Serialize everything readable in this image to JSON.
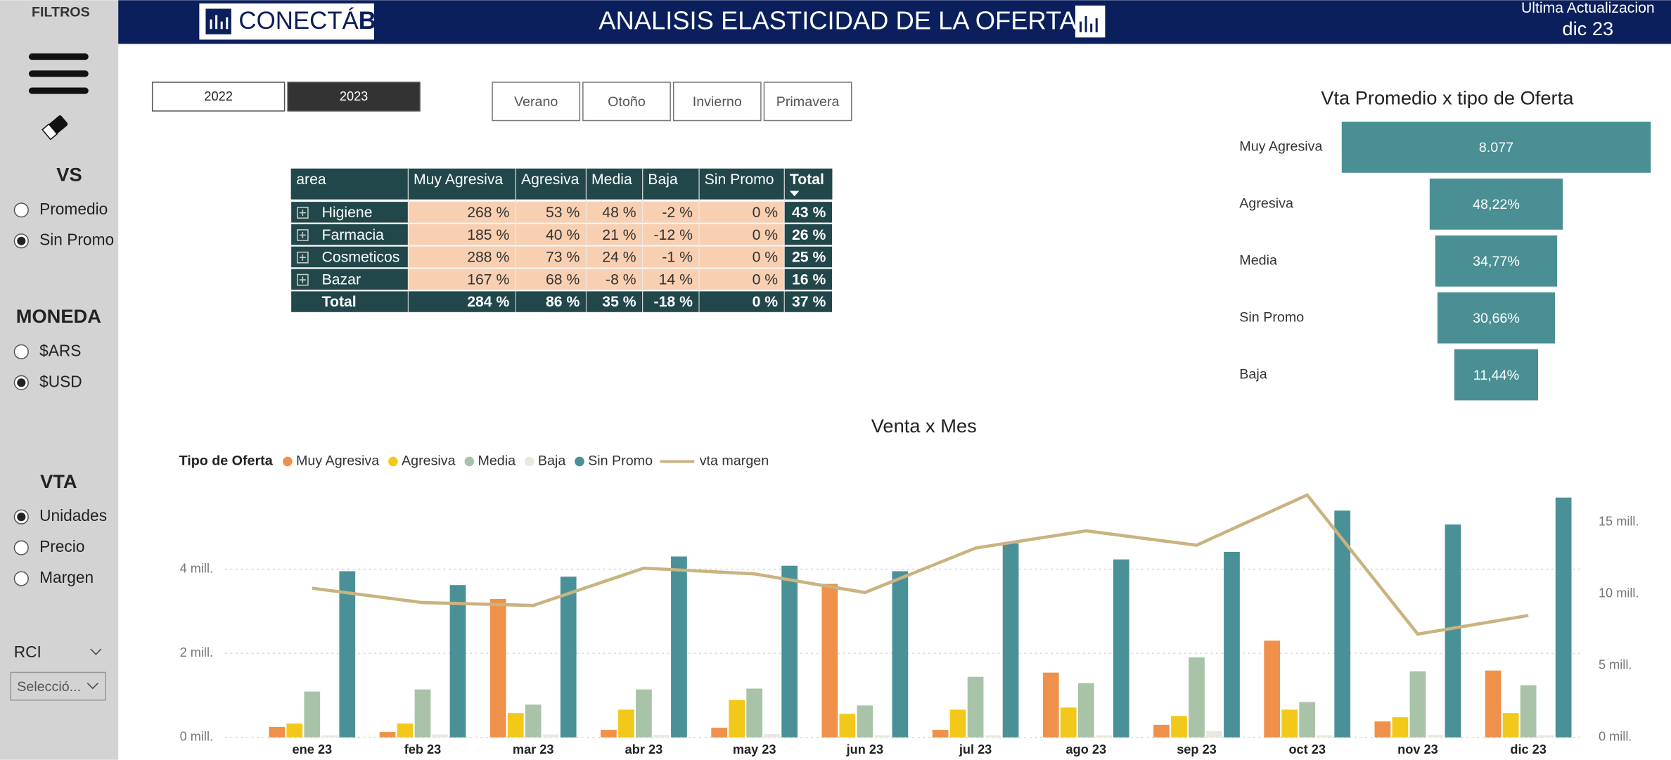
{
  "header": {
    "brand": "CONECTÁ",
    "brand_bold": "BI",
    "title": "ANALISIS ELASTICIDAD DE LA OFERTA",
    "update_label": "Ultima Actualizacion",
    "update_value": "dic 23"
  },
  "sidebar": {
    "title": "FILTROS",
    "groups": [
      {
        "title": "VS",
        "options": [
          "Promedio",
          "Sin Promo"
        ],
        "selected": 1
      },
      {
        "title": "MONEDA",
        "options": [
          "$ARS",
          "$USD"
        ],
        "selected": 1
      },
      {
        "title": "VTA",
        "options": [
          "Unidades",
          "Precio",
          "Margen"
        ],
        "selected": 0
      }
    ],
    "rci": {
      "label": "RCI",
      "placeholder": "Selecció..."
    }
  },
  "filters": {
    "years": [
      "2022",
      "2023"
    ],
    "selected_year": 1,
    "seasons": [
      "Verano",
      "Otoño",
      "Invierno",
      "Primavera"
    ]
  },
  "table": {
    "columns": [
      "area",
      "Muy Agresiva",
      "Agresiva",
      "Media",
      "Baja",
      "Sin Promo",
      "Total"
    ],
    "rows": [
      [
        "Higiene",
        "268 %",
        "53 %",
        "48 %",
        "-2 %",
        "0 %",
        "43 %"
      ],
      [
        "Farmacia",
        "185 %",
        "40 %",
        "21 %",
        "-12 %",
        "0 %",
        "26 %"
      ],
      [
        "Cosmeticos",
        "288 %",
        "73 %",
        "24 %",
        "-1 %",
        "0 %",
        "25 %"
      ],
      [
        "Bazar",
        "167 %",
        "68 %",
        "-8 %",
        "14 %",
        "0 %",
        "16 %"
      ]
    ],
    "total": [
      "Total",
      "284 %",
      "86 %",
      "35 %",
      "-18 %",
      "0 %",
      "37 %"
    ]
  },
  "chart_data": [
    {
      "type": "funnel",
      "title": "Vta Promedio x tipo de Oferta",
      "categories": [
        "Muy Agresiva",
        "Agresiva",
        "Media",
        "Sin Promo",
        "Baja"
      ],
      "values": [
        8077,
        48.22,
        34.77,
        30.66,
        11.44
      ],
      "value_labels": [
        "8.077",
        "48,22%",
        "34,77%",
        "30,66%",
        "11,44%"
      ],
      "color": "#4a8f94",
      "log_scale": true
    },
    {
      "type": "combo",
      "title": "Venta x Mes",
      "legend_title": "Tipo de Oferta",
      "categories": [
        "ene 23",
        "feb 23",
        "mar 23",
        "abr 23",
        "may 23",
        "jun 23",
        "jul 23",
        "ago 23",
        "sep 23",
        "oct 23",
        "nov 23",
        "dic 23"
      ],
      "series": [
        {
          "name": "Muy Agresiva",
          "color": "#f0914b",
          "type": "bar",
          "values": [
            250000,
            130000,
            3290000,
            180000,
            230000,
            3650000,
            180000,
            1540000,
            300000,
            2300000,
            380000,
            1590000
          ]
        },
        {
          "name": "Agresiva",
          "color": "#f2c81a",
          "type": "bar",
          "values": [
            330000,
            330000,
            580000,
            660000,
            890000,
            560000,
            660000,
            710000,
            510000,
            660000,
            480000,
            580000
          ]
        },
        {
          "name": "Media",
          "color": "#a8c3a8",
          "type": "bar",
          "values": [
            1090000,
            1140000,
            780000,
            1140000,
            1160000,
            760000,
            1440000,
            1290000,
            1900000,
            840000,
            1570000,
            1240000
          ]
        },
        {
          "name": "Baja",
          "color": "#e9e8df",
          "type": "bar",
          "values": [
            50000,
            70000,
            70000,
            60000,
            80000,
            50000,
            50000,
            50000,
            150000,
            50000,
            60000,
            50000
          ]
        },
        {
          "name": "Sin Promo",
          "color": "#4a9197",
          "type": "bar",
          "values": [
            3950000,
            3620000,
            3820000,
            4300000,
            4080000,
            3950000,
            4610000,
            4230000,
            4410000,
            5390000,
            5060000,
            5700000
          ]
        },
        {
          "name": "vta margen",
          "color": "#c9b37f",
          "type": "line",
          "axis": "y2",
          "values": [
            10400000,
            9400000,
            9200000,
            11800000,
            11400000,
            10100000,
            13200000,
            14400000,
            13400000,
            16900000,
            7200000,
            8500000
          ]
        }
      ],
      "ylim": [
        0,
        6000000
      ],
      "yticks": [
        {
          "value": 0,
          "label": "0 mill."
        },
        {
          "value": 2000000,
          "label": "2 mill."
        },
        {
          "value": 4000000,
          "label": "4 mill."
        }
      ],
      "y2lim": [
        0,
        17600000
      ],
      "y2ticks": [
        {
          "value": 0,
          "label": "0 mill."
        },
        {
          "value": 5000000,
          "label": "5 mill."
        },
        {
          "value": 10000000,
          "label": "10 mill."
        },
        {
          "value": 15000000,
          "label": "15 mill."
        }
      ],
      "grid": true
    }
  ]
}
